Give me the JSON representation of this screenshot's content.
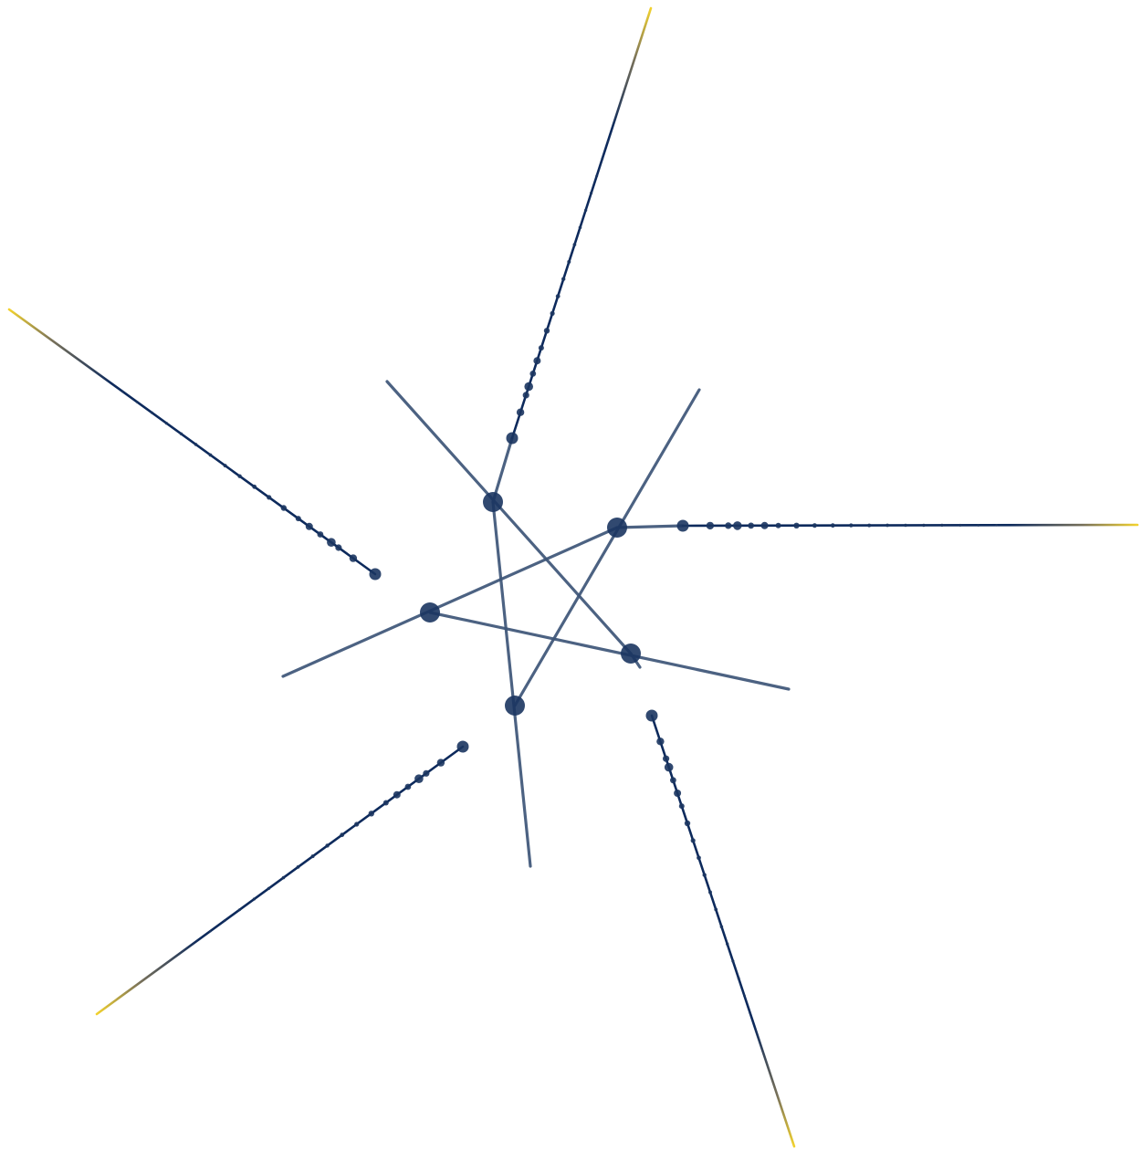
{
  "diagram": {
    "colors": {
      "background": "#ffffff",
      "node": "#1b3560",
      "edge": "#3d5578",
      "spoke_tip": "#f2d22e",
      "spoke_base": "#0d2a5c"
    },
    "hubs": [
      {
        "id": "hub-top"
      },
      {
        "id": "hub-right"
      },
      {
        "id": "hub-left"
      },
      {
        "id": "hub-lower-right"
      },
      {
        "id": "hub-lower-left"
      }
    ],
    "spokes": [
      {
        "id": "spoke-top",
        "from": "hub-top"
      },
      {
        "id": "spoke-right",
        "from": "hub-right"
      },
      {
        "id": "spoke-left",
        "from": "hub-left"
      },
      {
        "id": "spoke-lower-right",
        "from": "hub-lower-right"
      },
      {
        "id": "spoke-lower-left",
        "from": "hub-lower-left"
      }
    ]
  }
}
